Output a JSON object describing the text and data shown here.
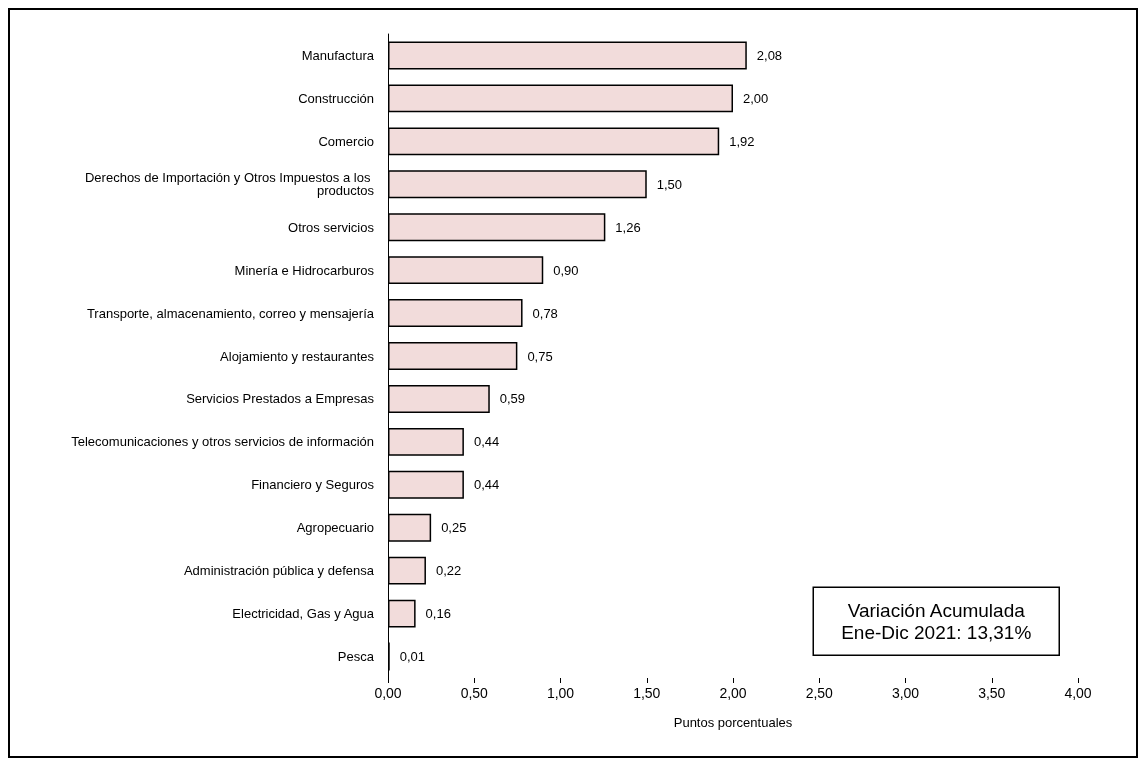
{
  "chart_data": {
    "type": "bar",
    "orientation": "horizontal",
    "categories": [
      "Manufactura",
      "Construcción",
      "Comercio",
      "Derechos de Importación y Otros Impuestos a los productos",
      "Otros servicios",
      "Minería e Hidrocarburos",
      "Transporte, almacenamiento, correo y mensajería",
      "Alojamiento y restaurantes",
      "Servicios Prestados a Empresas",
      "Telecomunicaciones y otros servicios de información",
      "Financiero y Seguros",
      "Agropecuario",
      "Administración pública y defensa",
      "Electricidad, Gas y Agua",
      "Pesca"
    ],
    "values": [
      2.08,
      2.0,
      1.92,
      1.5,
      1.26,
      0.9,
      0.78,
      0.75,
      0.59,
      0.44,
      0.44,
      0.25,
      0.22,
      0.16,
      0.01
    ],
    "value_labels": [
      "2,08",
      "2,00",
      "1,92",
      "1,50",
      "1,26",
      "0,90",
      "0,78",
      "0,75",
      "0,59",
      "0,44",
      "0,44",
      "0,25",
      "0,22",
      "0,16",
      "0,01"
    ],
    "color": "#f2dcdb",
    "xlabel": "Puntos porcentuales",
    "xlim": [
      0,
      4
    ],
    "xticks": [
      {
        "value": 0,
        "label": "0,00"
      },
      {
        "value": 0.5,
        "label": "0,50"
      },
      {
        "value": 1,
        "label": "1,00"
      },
      {
        "value": 1.5,
        "label": "1,50"
      },
      {
        "value": 2,
        "label": "2,00"
      },
      {
        "value": 2.5,
        "label": "2,50"
      },
      {
        "value": 3,
        "label": "3,00"
      },
      {
        "value": 3.5,
        "label": "3,50"
      },
      {
        "value": 4,
        "label": "4,00"
      }
    ],
    "annotations": [
      "Variación Acumulada\nEne-Dic 2021: 13,31%"
    ],
    "grid": false
  }
}
